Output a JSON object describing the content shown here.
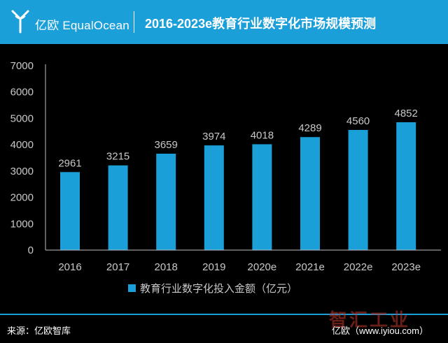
{
  "header": {
    "logo_text": "亿欧 EqualOcean",
    "title": "2016-2023e教育行业数字化市场规模预测"
  },
  "footer": {
    "source": "来源：亿欧智库",
    "site": "亿欧（www.iyiou.com）",
    "watermark": "智汇工业"
  },
  "colors": {
    "header_bg": "#1a9fd9",
    "bar": "#1a9fd9",
    "text": "#c8c8c8",
    "background": "#000000"
  },
  "chart_data": {
    "type": "bar",
    "categories": [
      "2016",
      "2017",
      "2018",
      "2019",
      "2020e",
      "2021e",
      "2022e",
      "2023e"
    ],
    "series": [
      {
        "name": "教育行业数字化投入金额（亿元）",
        "values": [
          2961,
          3215,
          3659,
          3974,
          4018,
          4289,
          4560,
          4852
        ]
      }
    ],
    "yticks": [
      0,
      1000,
      2000,
      3000,
      4000,
      5000,
      6000,
      7000
    ],
    "ylim": [
      0,
      7000
    ],
    "grid": false,
    "legend_position": "bottom-center",
    "data_labels": true
  }
}
